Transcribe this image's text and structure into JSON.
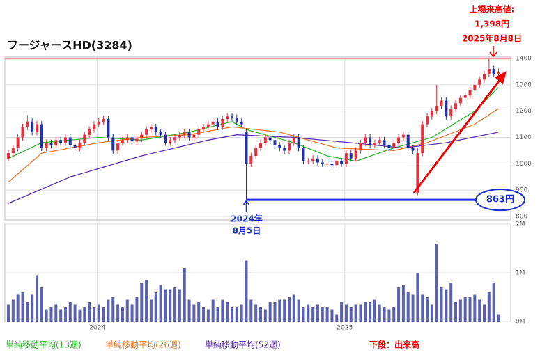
{
  "chart_data": {
    "type": "candlestick",
    "title": "フージャースHD(3284)",
    "ylim": [
      800,
      1400
    ],
    "yticks": [
      800,
      900,
      1000,
      1100,
      1200,
      1300,
      1400
    ],
    "volume_ylim": [
      0,
      2000000
    ],
    "volume_ticks": [
      {
        "value": 0,
        "label": "0M"
      },
      {
        "value": 1000000,
        "label": "1M"
      },
      {
        "value": 2000000,
        "label": "2M"
      }
    ],
    "xticks": [
      {
        "value": 18.7,
        "label": "2024"
      },
      {
        "value": 70.7,
        "label": "2025"
      }
    ],
    "up_color": "#e8303c",
    "down_color": "#2233a0",
    "volume_color": "#5b63b0",
    "ohlc": [
      [
        1020,
        1052,
        1008,
        1040
      ],
      [
        1040,
        1072,
        1028,
        1060
      ],
      [
        1060,
        1112,
        1048,
        1100
      ],
      [
        1100,
        1152,
        1088,
        1140
      ],
      [
        1140,
        1185,
        1128,
        1160
      ],
      [
        1160,
        1172,
        1108,
        1120
      ],
      [
        1120,
        1162,
        1108,
        1150
      ],
      [
        1150,
        1162,
        1048,
        1060
      ],
      [
        1060,
        1092,
        1048,
        1080
      ],
      [
        1080,
        1092,
        1058,
        1070
      ],
      [
        1070,
        1102,
        1058,
        1090
      ],
      [
        1090,
        1102,
        1068,
        1080
      ],
      [
        1080,
        1112,
        1068,
        1100
      ],
      [
        1100,
        1112,
        1058,
        1070
      ],
      [
        1070,
        1082,
        1048,
        1060
      ],
      [
        1060,
        1092,
        1048,
        1080
      ],
      [
        1080,
        1122,
        1068,
        1110
      ],
      [
        1110,
        1142,
        1098,
        1130
      ],
      [
        1130,
        1162,
        1118,
        1150
      ],
      [
        1150,
        1175,
        1138,
        1160
      ],
      [
        1160,
        1182,
        1148,
        1170
      ],
      [
        1170,
        1182,
        1088,
        1100
      ],
      [
        1100,
        1112,
        1038,
        1050
      ],
      [
        1050,
        1092,
        1038,
        1080
      ],
      [
        1080,
        1102,
        1068,
        1090
      ],
      [
        1090,
        1112,
        1078,
        1100
      ],
      [
        1100,
        1112,
        1073,
        1085
      ],
      [
        1085,
        1107,
        1073,
        1095
      ],
      [
        1095,
        1122,
        1083,
        1110
      ],
      [
        1110,
        1142,
        1098,
        1130
      ],
      [
        1130,
        1152,
        1118,
        1140
      ],
      [
        1140,
        1152,
        1108,
        1120
      ],
      [
        1120,
        1132,
        1098,
        1110
      ],
      [
        1110,
        1122,
        1068,
        1080
      ],
      [
        1080,
        1102,
        1068,
        1090
      ],
      [
        1090,
        1112,
        1078,
        1100
      ],
      [
        1100,
        1122,
        1088,
        1110
      ],
      [
        1110,
        1132,
        1098,
        1120
      ],
      [
        1120,
        1132,
        1088,
        1100
      ],
      [
        1100,
        1122,
        1088,
        1110
      ],
      [
        1110,
        1142,
        1098,
        1130
      ],
      [
        1130,
        1152,
        1118,
        1140
      ],
      [
        1140,
        1162,
        1128,
        1150
      ],
      [
        1150,
        1175,
        1138,
        1160
      ],
      [
        1160,
        1172,
        1128,
        1140
      ],
      [
        1140,
        1182,
        1128,
        1170
      ],
      [
        1170,
        1192,
        1158,
        1180
      ],
      [
        1180,
        1192,
        1163,
        1175
      ],
      [
        1175,
        1187,
        1148,
        1160
      ],
      [
        1160,
        1172,
        1138,
        1150
      ],
      [
        1120,
        1130,
        863,
        1000
      ],
      [
        1000,
        1042,
        988,
        1030
      ],
      [
        1030,
        1072,
        1018,
        1060
      ],
      [
        1060,
        1092,
        1048,
        1080
      ],
      [
        1080,
        1112,
        1068,
        1100
      ],
      [
        1100,
        1112,
        1078,
        1090
      ],
      [
        1090,
        1102,
        1058,
        1070
      ],
      [
        1070,
        1082,
        1048,
        1060
      ],
      [
        1060,
        1072,
        1038,
        1050
      ],
      [
        1050,
        1092,
        1038,
        1080
      ],
      [
        1080,
        1112,
        1068,
        1100
      ],
      [
        1100,
        1112,
        1048,
        1060
      ],
      [
        1060,
        1072,
        998,
        1010
      ],
      [
        1010,
        1022,
        998,
        1010
      ],
      [
        1010,
        1032,
        998,
        1020
      ],
      [
        1020,
        1032,
        993,
        1005
      ],
      [
        1005,
        1017,
        988,
        1000
      ],
      [
        1000,
        1012,
        988,
        1000
      ],
      [
        1000,
        1012,
        983,
        995
      ],
      [
        995,
        1022,
        983,
        1010
      ],
      [
        1010,
        1022,
        988,
        1000
      ],
      [
        1000,
        1052,
        988,
        1040
      ],
      [
        1040,
        1052,
        1008,
        1020
      ],
      [
        1020,
        1062,
        1008,
        1050
      ],
      [
        1050,
        1092,
        1038,
        1080
      ],
      [
        1080,
        1112,
        1068,
        1100
      ],
      [
        1100,
        1112,
        1058,
        1070
      ],
      [
        1070,
        1092,
        1058,
        1080
      ],
      [
        1080,
        1102,
        1068,
        1090
      ],
      [
        1090,
        1102,
        1058,
        1070
      ],
      [
        1070,
        1082,
        1048,
        1060
      ],
      [
        1060,
        1092,
        1048,
        1080
      ],
      [
        1080,
        1112,
        1068,
        1100
      ],
      [
        1100,
        1122,
        1088,
        1110
      ],
      [
        1110,
        1122,
        1048,
        1060
      ],
      [
        1060,
        1072,
        1038,
        1050
      ],
      [
        890,
        1060,
        880,
        1040
      ],
      [
        1040,
        1162,
        1028,
        1150
      ],
      [
        1150,
        1192,
        1138,
        1180
      ],
      [
        1180,
        1212,
        1168,
        1200
      ],
      [
        1200,
        1300,
        1188,
        1220
      ],
      [
        1220,
        1252,
        1208,
        1240
      ],
      [
        1240,
        1252,
        1168,
        1180
      ],
      [
        1180,
        1222,
        1168,
        1210
      ],
      [
        1210,
        1242,
        1198,
        1230
      ],
      [
        1230,
        1262,
        1218,
        1250
      ],
      [
        1250,
        1272,
        1238,
        1260
      ],
      [
        1260,
        1292,
        1248,
        1280
      ],
      [
        1280,
        1312,
        1268,
        1300
      ],
      [
        1300,
        1332,
        1288,
        1320
      ],
      [
        1320,
        1352,
        1308,
        1340
      ],
      [
        1340,
        1398,
        1328,
        1360
      ],
      [
        1360,
        1372,
        1328,
        1340
      ],
      [
        1340,
        1362,
        1328,
        1350
      ]
    ],
    "volume": [
      350000,
      450000,
      550000,
      600000,
      400000,
      550000,
      950000,
      700000,
      250000,
      300000,
      350000,
      250000,
      300000,
      400000,
      350000,
      250000,
      300000,
      400000,
      300000,
      350000,
      300000,
      450000,
      500000,
      350000,
      300000,
      450000,
      350000,
      500000,
      800000,
      850000,
      450000,
      600000,
      750000,
      650000,
      650000,
      700000,
      650000,
      1100000,
      450000,
      350000,
      400000,
      300000,
      250000,
      450000,
      300000,
      450000,
      400000,
      300000,
      300000,
      350000,
      1250000,
      450000,
      350000,
      300000,
      250000,
      400000,
      400000,
      450000,
      450000,
      500000,
      550000,
      450000,
      300000,
      350000,
      300000,
      350000,
      300000,
      300000,
      250000,
      150000,
      400000,
      350000,
      300000,
      350000,
      350000,
      400000,
      400000,
      450000,
      350000,
      300000,
      250000,
      300000,
      700000,
      750000,
      600000,
      550000,
      1000000,
      550000,
      500000,
      350000,
      1600000,
      700000,
      650000,
      800000,
      400000,
      450000,
      500000,
      500000,
      550000,
      450000,
      350000,
      600000,
      800000,
      150000
    ],
    "series": [
      {
        "name": "単純移動平均(13週)",
        "color": "#2fb52f",
        "x": [
          0,
          7,
          19,
          28,
          38,
          47,
          50,
          60,
          67,
          73,
          81,
          89,
          98,
          103
        ],
        "values": [
          1020,
          1080,
          1100,
          1090,
          1120,
          1160,
          1130,
          1080,
          1030,
          1010,
          1060,
          1100,
          1200,
          1290
        ]
      },
      {
        "name": "単純移動平均(26週)",
        "color": "#e8782a",
        "x": [
          0,
          7,
          19,
          28,
          38,
          47,
          57,
          69,
          81,
          88,
          98,
          103
        ],
        "values": [
          930,
          1040,
          1080,
          1100,
          1110,
          1140,
          1120,
          1060,
          1050,
          1080,
          1150,
          1210
        ]
      },
      {
        "name": "単純移動平均(52週)",
        "color": "#5a2fa8",
        "x": [
          0,
          13,
          28,
          42,
          48,
          60,
          72,
          83,
          92,
          103
        ],
        "values": [
          850,
          950,
          1030,
          1090,
          1110,
          1100,
          1080,
          1060,
          1080,
          1120
        ]
      }
    ],
    "reference_lines": [
      {
        "value": 1398,
        "color": "#e89090"
      },
      {
        "value": 863,
        "color": "#1a2ed0"
      }
    ],
    "annotations": {
      "high_title": "上場来高値:",
      "high_price": "1,398円",
      "high_date": "2025年8月8日",
      "low_year": "2024年",
      "low_date": "8月5日",
      "low_price": "863円"
    },
    "volume_note": "下段：出来高"
  }
}
